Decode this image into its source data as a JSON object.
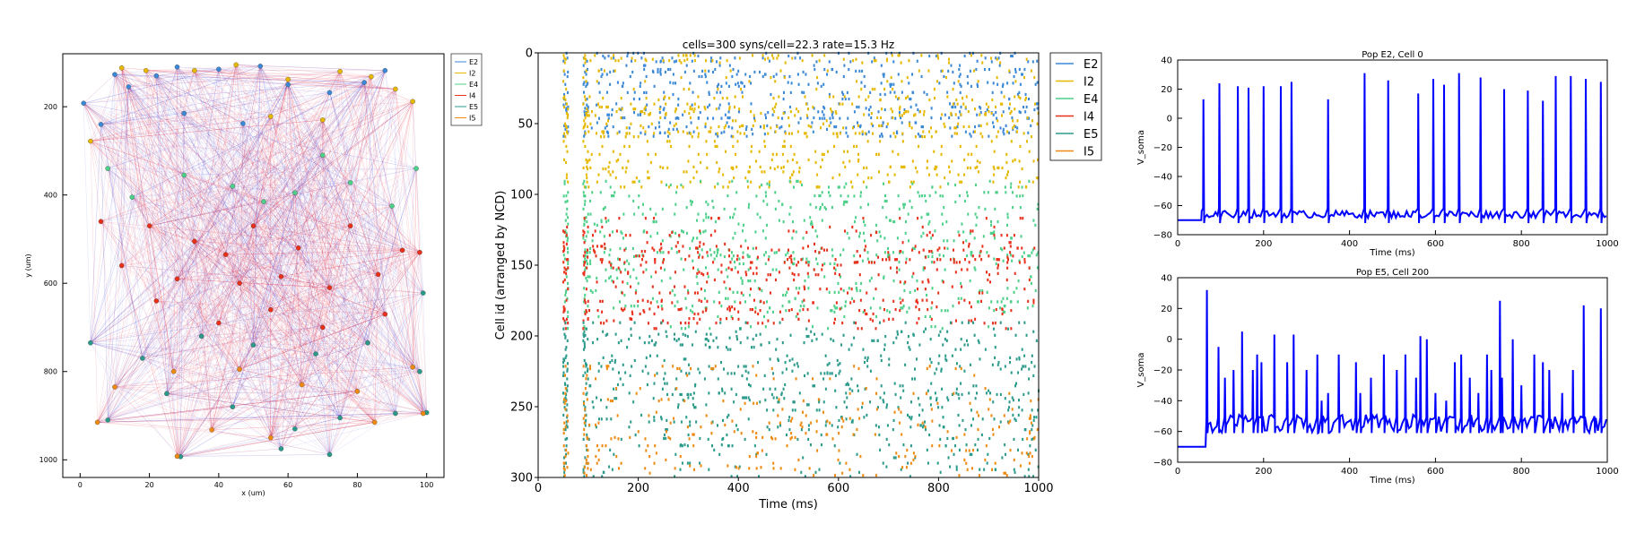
{
  "colors": {
    "E2": "#3a88d6",
    "I2": "#e6b800",
    "E4": "#4cd08a",
    "I4": "#e8301a",
    "E5": "#2a9a8a",
    "I5": "#ee8a10",
    "conn_exc": "#2a2ad8",
    "conn_inh": "#e8182e",
    "trace": "#0000ff"
  },
  "chart_data": [
    {
      "type": "scatter",
      "xlabel": "x (um)",
      "ylabel": "y (um)",
      "xlim": [
        -5,
        105
      ],
      "ylim": [
        1040,
        80
      ],
      "y_inverted": true,
      "xticks": [
        0,
        20,
        40,
        60,
        80,
        100
      ],
      "yticks": [
        200,
        400,
        600,
        800,
        1000
      ],
      "legend": [
        "E2",
        "I2",
        "E4",
        "I4",
        "E5",
        "I5"
      ],
      "legend_position": "outside-right",
      "note_connections": "cells are joined by many thin red and blue connection lines",
      "series": [
        {
          "name": "E2",
          "points": [
            [
              1,
              192
            ],
            [
              10,
              127
            ],
            [
              14,
              155
            ],
            [
              22,
              130
            ],
            [
              28,
              110
            ],
            [
              40,
              115
            ],
            [
              52,
              108
            ],
            [
              60,
              150
            ],
            [
              72,
              168
            ],
            [
              82,
              145
            ],
            [
              88,
              118
            ],
            [
              6,
              240
            ],
            [
              30,
              215
            ],
            [
              47,
              238
            ]
          ]
        },
        {
          "name": "I2",
          "points": [
            [
              12,
              112
            ],
            [
              19,
              118
            ],
            [
              33,
              118
            ],
            [
              45,
              105
            ],
            [
              60,
              138
            ],
            [
              75,
              120
            ],
            [
              84,
              132
            ],
            [
              96,
              188
            ],
            [
              3,
              278
            ],
            [
              55,
              222
            ],
            [
              70,
              230
            ],
            [
              91,
              160
            ]
          ]
        },
        {
          "name": "E4",
          "points": [
            [
              97,
              340
            ],
            [
              8,
              340
            ],
            [
              30,
              355
            ],
            [
              44,
              380
            ],
            [
              62,
              395
            ],
            [
              78,
              372
            ],
            [
              90,
              425
            ],
            [
              15,
              405
            ],
            [
              53,
              415
            ],
            [
              70,
              310
            ]
          ]
        },
        {
          "name": "I4",
          "points": [
            [
              6,
              460
            ],
            [
              20,
              470
            ],
            [
              33,
              505
            ],
            [
              42,
              535
            ],
            [
              50,
              470
            ],
            [
              63,
              520
            ],
            [
              78,
              470
            ],
            [
              93,
              525
            ],
            [
              12,
              560
            ],
            [
              28,
              590
            ],
            [
              46,
              600
            ],
            [
              58,
              585
            ],
            [
              72,
              610
            ],
            [
              86,
              580
            ],
            [
              98,
              530
            ],
            [
              22,
              640
            ],
            [
              40,
              690
            ],
            [
              55,
              660
            ],
            [
              70,
              700
            ],
            [
              88,
              670
            ]
          ]
        },
        {
          "name": "E5",
          "points": [
            [
              99,
              622
            ],
            [
              3,
              735
            ],
            [
              18,
              770
            ],
            [
              35,
              720
            ],
            [
              50,
              740
            ],
            [
              68,
              760
            ],
            [
              83,
              735
            ],
            [
              98,
              800
            ],
            [
              25,
              850
            ],
            [
              44,
              880
            ],
            [
              62,
              930
            ],
            [
              75,
              905
            ],
            [
              91,
              895
            ],
            [
              58,
              975
            ],
            [
              72,
              988
            ],
            [
              29,
              993
            ],
            [
              8,
              910
            ],
            [
              100,
              893
            ]
          ]
        },
        {
          "name": "I5",
          "points": [
            [
              10,
              835
            ],
            [
              27,
              800
            ],
            [
              46,
              795
            ],
            [
              64,
              830
            ],
            [
              80,
              845
            ],
            [
              96,
              790
            ],
            [
              5,
              915
            ],
            [
              38,
              932
            ],
            [
              55,
              950
            ],
            [
              85,
              915
            ],
            [
              99,
              895
            ],
            [
              28,
              992
            ]
          ]
        }
      ]
    },
    {
      "type": "scatter",
      "title": "cells=300 syns/cell=22.3 rate=15.3 Hz",
      "xlabel": "Time (ms)",
      "ylabel": "Cell id (arranged by NCD)",
      "xlim": [
        0,
        1000
      ],
      "ylim": [
        300,
        0
      ],
      "y_inverted": true,
      "xticks": [
        0,
        200,
        400,
        600,
        800,
        1000
      ],
      "yticks": [
        0,
        50,
        100,
        150,
        200,
        250,
        300
      ],
      "legend_position": "outside-right",
      "series": [
        {
          "name": "E2",
          "cell_range": [
            0,
            60
          ],
          "onset_ms": 55,
          "rate_hz": 16
        },
        {
          "name": "I2",
          "cell_range": [
            0,
            95
          ],
          "onset_ms": 58,
          "rate_hz": 18
        },
        {
          "name": "E4",
          "cell_range": [
            90,
            195
          ],
          "onset_ms": 60,
          "rate_hz": 15
        },
        {
          "name": "I4",
          "cell_range": [
            115,
            195
          ],
          "onset_ms": 62,
          "rate_hz": 12
        },
        {
          "name": "E5",
          "cell_range": [
            190,
            300
          ],
          "onset_ms": 60,
          "rate_hz": 13
        },
        {
          "name": "I5",
          "cell_range": [
            220,
            300
          ],
          "onset_ms": 60,
          "rate_hz": 9
        }
      ],
      "population_bursts_ms": [
        55,
        95
      ]
    },
    {
      "type": "line",
      "title": "Pop E2, Cell 0",
      "xlabel": "Time (ms)",
      "ylabel": "V_soma",
      "xlim": [
        0,
        1000
      ],
      "ylim": [
        -80,
        40
      ],
      "xticks": [
        0,
        200,
        400,
        600,
        800,
        1000
      ],
      "yticks": [
        40,
        20,
        0,
        -20,
        -40,
        -60,
        -80
      ],
      "resting_mv": -70,
      "baseline_mv": -66,
      "onset_ms": 55,
      "spikes": [
        [
          60,
          13
        ],
        [
          97,
          24
        ],
        [
          140,
          22
        ],
        [
          165,
          21
        ],
        [
          200,
          22
        ],
        [
          240,
          22
        ],
        [
          265,
          25
        ],
        [
          350,
          13
        ],
        [
          435,
          31
        ],
        [
          490,
          26
        ],
        [
          560,
          17
        ],
        [
          595,
          27
        ],
        [
          620,
          23
        ],
        [
          655,
          31
        ],
        [
          705,
          28
        ],
        [
          760,
          20
        ],
        [
          815,
          19
        ],
        [
          850,
          12
        ],
        [
          880,
          29
        ],
        [
          915,
          29
        ],
        [
          950,
          27
        ],
        [
          985,
          25
        ]
      ]
    },
    {
      "type": "line",
      "title": "Pop E5, Cell 200",
      "xlabel": "Time (ms)",
      "ylabel": "V_soma",
      "xlim": [
        0,
        1000
      ],
      "ylim": [
        -80,
        40
      ],
      "xticks": [
        0,
        200,
        400,
        600,
        800,
        1000
      ],
      "yticks": [
        40,
        20,
        0,
        -20,
        -40,
        -60,
        -80
      ],
      "resting_mv": -70,
      "baseline_mv": -55,
      "onset_ms": 65,
      "spikes": [
        [
          68,
          32
        ],
        [
          95,
          -5
        ],
        [
          110,
          -25
        ],
        [
          130,
          -20
        ],
        [
          150,
          5
        ],
        [
          175,
          -20
        ],
        [
          185,
          -10
        ],
        [
          195,
          -15
        ],
        [
          225,
          3
        ],
        [
          255,
          -15
        ],
        [
          270,
          3
        ],
        [
          300,
          -20
        ],
        [
          325,
          -10
        ],
        [
          335,
          -40
        ],
        [
          350,
          -35
        ],
        [
          375,
          -10
        ],
        [
          415,
          -15
        ],
        [
          425,
          -35
        ],
        [
          450,
          -25
        ],
        [
          480,
          -10
        ],
        [
          510,
          -20
        ],
        [
          530,
          -10
        ],
        [
          555,
          -25
        ],
        [
          565,
          2
        ],
        [
          580,
          0
        ],
        [
          600,
          -35
        ],
        [
          625,
          -40
        ],
        [
          645,
          -15
        ],
        [
          660,
          -10
        ],
        [
          680,
          -25
        ],
        [
          700,
          -35
        ],
        [
          720,
          -10
        ],
        [
          730,
          -20
        ],
        [
          750,
          25
        ],
        [
          755,
          -25
        ],
        [
          780,
          0
        ],
        [
          800,
          -30
        ],
        [
          830,
          -10
        ],
        [
          850,
          -15
        ],
        [
          865,
          -20
        ],
        [
          895,
          -35
        ],
        [
          920,
          -20
        ],
        [
          945,
          22
        ],
        [
          970,
          -50
        ],
        [
          985,
          20
        ]
      ]
    }
  ]
}
